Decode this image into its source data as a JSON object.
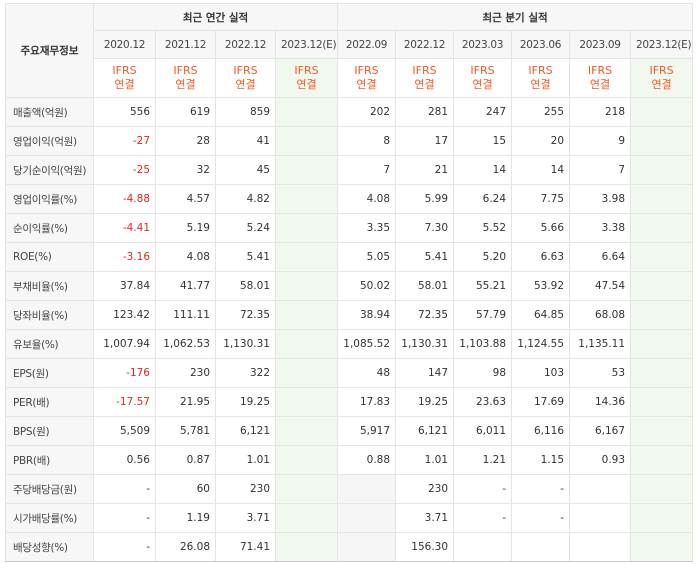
{
  "header": {
    "row_label": "주요재무정보",
    "annual_title": "최근 연간 실적",
    "quarter_title": "최근 분기 실적",
    "annual_periods": [
      "2020.12",
      "2021.12",
      "2022.12",
      "2023.12(E)"
    ],
    "quarter_periods": [
      "2022.09",
      "2022.12",
      "2023.03",
      "2023.06",
      "2023.09",
      "2023.12(E)"
    ],
    "ifrs_line1": "IFRS",
    "ifrs_line2": "연결"
  },
  "rows": [
    {
      "label": "매출액(억원)",
      "annual": [
        "556",
        "619",
        "859",
        ""
      ],
      "quarter": [
        "202",
        "281",
        "247",
        "255",
        "218",
        ""
      ]
    },
    {
      "label": "영업이익(억원)",
      "annual": [
        "-27",
        "28",
        "41",
        ""
      ],
      "quarter": [
        "8",
        "17",
        "15",
        "20",
        "9",
        ""
      ]
    },
    {
      "label": "당기순이익(억원)",
      "annual": [
        "-25",
        "32",
        "45",
        ""
      ],
      "quarter": [
        "7",
        "21",
        "14",
        "14",
        "7",
        ""
      ]
    },
    {
      "label": "영업이익률(%)",
      "annual": [
        "-4.88",
        "4.57",
        "4.82",
        ""
      ],
      "quarter": [
        "4.08",
        "5.99",
        "6.24",
        "7.75",
        "3.98",
        ""
      ]
    },
    {
      "label": "순이익률(%)",
      "annual": [
        "-4.41",
        "5.19",
        "5.24",
        ""
      ],
      "quarter": [
        "3.35",
        "7.30",
        "5.52",
        "5.66",
        "3.38",
        ""
      ]
    },
    {
      "label": "ROE(%)",
      "annual": [
        "-3.16",
        "4.08",
        "5.41",
        ""
      ],
      "quarter": [
        "5.05",
        "5.41",
        "5.20",
        "6.63",
        "6.64",
        ""
      ]
    },
    {
      "label": "부채비율(%)",
      "annual": [
        "37.84",
        "41.77",
        "58.01",
        ""
      ],
      "quarter": [
        "50.02",
        "58.01",
        "55.21",
        "53.92",
        "47.54",
        ""
      ]
    },
    {
      "label": "당좌비율(%)",
      "annual": [
        "123.42",
        "111.11",
        "72.35",
        ""
      ],
      "quarter": [
        "38.94",
        "72.35",
        "57.79",
        "64.85",
        "68.08",
        ""
      ]
    },
    {
      "label": "유보율(%)",
      "annual": [
        "1,007.94",
        "1,062.53",
        "1,130.31",
        ""
      ],
      "quarter": [
        "1,085.52",
        "1,130.31",
        "1,103.88",
        "1,124.55",
        "1,135.11",
        ""
      ]
    },
    {
      "label": "EPS(원)",
      "annual": [
        "-176",
        "230",
        "322",
        ""
      ],
      "quarter": [
        "48",
        "147",
        "98",
        "103",
        "53",
        ""
      ]
    },
    {
      "label": "PER(배)",
      "annual": [
        "-17.57",
        "21.95",
        "19.25",
        ""
      ],
      "quarter": [
        "17.83",
        "19.25",
        "23.63",
        "17.69",
        "14.36",
        ""
      ]
    },
    {
      "label": "BPS(원)",
      "annual": [
        "5,509",
        "5,781",
        "6,121",
        ""
      ],
      "quarter": [
        "5,917",
        "6,121",
        "6,011",
        "6,116",
        "6,167",
        ""
      ]
    },
    {
      "label": "PBR(배)",
      "annual": [
        "0.56",
        "0.87",
        "1.01",
        ""
      ],
      "quarter": [
        "0.88",
        "1.01",
        "1.21",
        "1.15",
        "0.93",
        ""
      ]
    },
    {
      "label": "주당배당금(원)",
      "annual": [
        "-",
        "60",
        "230",
        ""
      ],
      "quarter": [
        "",
        "230",
        "-",
        "-",
        "",
        ""
      ]
    },
    {
      "label": "시가배당률(%)",
      "annual": [
        "-",
        "1.19",
        "3.71",
        ""
      ],
      "quarter": [
        "",
        "3.71",
        "-",
        "-",
        "",
        ""
      ]
    },
    {
      "label": "배당성향(%)",
      "annual": [
        "-",
        "26.08",
        "71.41",
        ""
      ],
      "quarter": [
        "",
        "156.30",
        "",
        "",
        "",
        ""
      ]
    }
  ]
}
